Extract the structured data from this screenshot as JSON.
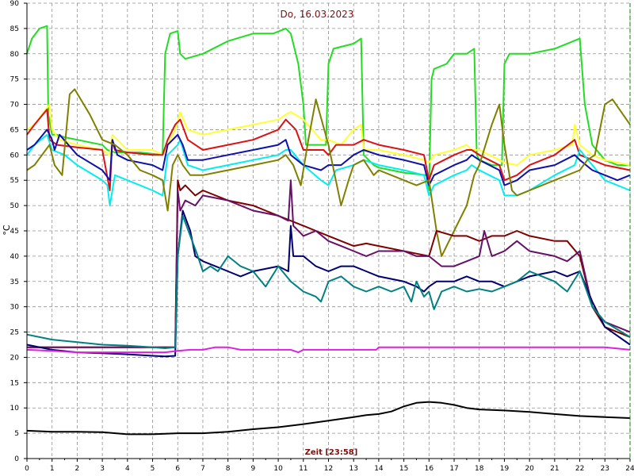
{
  "chart_data": {
    "type": "line",
    "title": "Do, 16.03.2023",
    "xlabel": "Zeit [23:58]",
    "ylabel": "°C",
    "xlim": [
      0,
      24
    ],
    "ylim": [
      0,
      90
    ],
    "x_ticks": [
      "0",
      "1",
      "2",
      "3",
      "4",
      "5",
      "6",
      "7",
      "8",
      "9",
      "10",
      "11",
      "12",
      "13",
      "14",
      "15",
      "16",
      "17",
      "18",
      "19",
      "20",
      "21",
      "22",
      "23",
      "24"
    ],
    "y_ticks": [
      "0",
      "5",
      "10",
      "15",
      "20",
      "25",
      "30",
      "35",
      "40",
      "45",
      "50",
      "55",
      "60",
      "65",
      "70",
      "75",
      "80",
      "85",
      "90"
    ],
    "grid": true,
    "series": [
      {
        "color": "#22dd22",
        "x": [
          0,
          0.2,
          0.5,
          0.8,
          0.85,
          1.0,
          1.2,
          1.5,
          2.0,
          3.0,
          3.2,
          3.5,
          4.5,
          5.4,
          5.5,
          5.7,
          6.0,
          6.1,
          6.3,
          7,
          8,
          9,
          9.8,
          10.3,
          10.5,
          10.8,
          11.0,
          11.1,
          11.5,
          11.9,
          12.0,
          12.2,
          13.0,
          13.3,
          13.4,
          13.8,
          14.0,
          14.5,
          15,
          15.9,
          16.0,
          16.1,
          16.2,
          16.7,
          17,
          17.5,
          17.8,
          17.9,
          18,
          18.5,
          18.9,
          19.0,
          19.2,
          20,
          21,
          22.0,
          22.2,
          22.5,
          23,
          23.5,
          24
        ],
        "y": [
          80,
          83,
          85,
          85.5,
          68,
          64,
          64,
          63.5,
          63,
          62,
          61,
          60.5,
          60.5,
          60,
          80,
          84,
          84.5,
          80,
          79,
          80,
          82.5,
          84,
          84,
          85,
          84,
          78,
          70,
          62,
          62,
          62,
          78,
          81,
          82,
          83,
          60,
          58,
          57.5,
          57,
          56.5,
          56,
          53,
          75,
          77,
          78,
          80,
          80,
          81,
          60,
          59,
          58,
          58,
          78,
          80,
          80,
          81,
          83,
          70,
          62,
          59,
          58,
          58
        ]
      },
      {
        "color": "#ffff33",
        "x": [
          0,
          0.3,
          0.9,
          1.0,
          1.3,
          2,
          3,
          3.3,
          3.4,
          4,
          5,
          5.4,
          5.6,
          5.9,
          6.1,
          6.4,
          7,
          8,
          9,
          10,
          10.3,
          10.5,
          11,
          11.7,
          12,
          12.5,
          13,
          13.3,
          13.4,
          14,
          15,
          15.8,
          16.0,
          16.2,
          17,
          17.5,
          17.7,
          18,
          18.8,
          19.0,
          19.5,
          20,
          21,
          21.7,
          21.8,
          22,
          22.5,
          23,
          24
        ],
        "y": [
          65,
          66,
          70,
          65,
          63,
          62,
          61,
          60,
          64,
          61,
          61,
          60,
          62,
          65,
          68.5,
          65,
          64,
          65,
          66,
          67,
          68,
          68.5,
          67,
          63,
          63,
          62,
          65,
          66,
          61,
          61,
          60,
          59,
          58.5,
          60,
          61,
          62,
          61,
          61,
          59,
          58.5,
          58,
          60,
          61,
          62,
          66,
          62,
          60,
          59,
          58
        ]
      },
      {
        "color": "#dd1111",
        "x": [
          0,
          0.3,
          0.8,
          0.9,
          1.2,
          2,
          3,
          3.3,
          3.4,
          3.5,
          4,
          5,
          5.4,
          5.6,
          5.9,
          6.1,
          6.4,
          7,
          8,
          9,
          10,
          10.3,
          10.7,
          11,
          11.8,
          12,
          12.3,
          13,
          13.4,
          14,
          15,
          15.8,
          16.0,
          16.2,
          17,
          17.5,
          17.7,
          18,
          18.8,
          19.0,
          19.5,
          20,
          21,
          21.8,
          22,
          22.5,
          23,
          24
        ],
        "y": [
          64,
          66,
          69,
          63,
          62,
          61.5,
          61,
          53,
          63,
          61,
          60.5,
          60,
          60,
          63,
          66,
          67,
          63,
          61,
          62,
          63,
          65,
          67,
          65,
          61,
          61,
          60,
          62,
          62,
          63,
          62,
          61,
          60,
          55,
          58,
          60,
          61,
          61,
          60,
          58,
          55,
          56,
          58,
          60,
          63,
          60,
          59,
          58,
          57
        ]
      },
      {
        "color": "#00eeee",
        "x": [
          0,
          0.3,
          0.8,
          1.0,
          1.5,
          2,
          3,
          3.2,
          3.3,
          3.5,
          4,
          5,
          5.4,
          5.6,
          6.0,
          6.1,
          6.4,
          7,
          8,
          9,
          10,
          10.3,
          10.5,
          11,
          11.7,
          12,
          12.3,
          13,
          13.4,
          14,
          15,
          15.8,
          16.0,
          16.2,
          17,
          17.5,
          17.7,
          18,
          18.8,
          19.0,
          19.5,
          20,
          21,
          21.8,
          22,
          22.5,
          23,
          24
        ],
        "y": [
          60,
          62,
          64,
          61,
          60,
          58,
          55,
          54,
          50,
          56,
          55,
          53,
          52,
          60,
          62,
          63,
          58,
          57,
          58,
          59,
          60,
          61,
          61,
          58,
          55,
          54,
          57,
          58,
          59,
          58,
          57,
          56,
          52,
          54,
          56,
          57,
          58,
          57,
          55,
          52,
          52,
          53,
          56,
          58,
          61,
          58,
          55,
          53
        ]
      },
      {
        "color": "#1010aa",
        "x": [
          0,
          0.3,
          0.8,
          1.0,
          1.1,
          1.3,
          2,
          3,
          3.3,
          3.4,
          3.6,
          4,
          5,
          5.4,
          5.6,
          6.0,
          6.2,
          6.4,
          7,
          8,
          9,
          10,
          10.3,
          10.5,
          11,
          11.7,
          12,
          12.5,
          13,
          13.4,
          14,
          15,
          15.8,
          16.0,
          16.2,
          17,
          17.5,
          17.7,
          18,
          18.8,
          19.0,
          19.5,
          20,
          21,
          21.8,
          22,
          22.5,
          23,
          23.5,
          24
        ],
        "y": [
          61,
          62,
          65,
          63,
          61,
          64,
          60,
          57,
          55,
          63,
          60,
          59,
          58,
          57,
          62,
          64,
          62,
          59,
          59,
          60,
          61,
          62,
          63,
          60,
          58,
          57,
          58,
          58,
          60,
          61,
          60,
          59,
          58,
          54,
          56,
          58,
          59,
          60,
          59,
          57,
          54,
          55,
          57,
          58,
          60,
          59,
          57,
          56,
          55,
          56
        ]
      },
      {
        "color": "#808000",
        "x": [
          0,
          0.3,
          0.6,
          0.9,
          1.1,
          1.4,
          1.7,
          1.9,
          2.5,
          3,
          3.5,
          4,
          4.5,
          5.0,
          5.4,
          5.6,
          5.8,
          6.0,
          6.2,
          6.5,
          7,
          8,
          9,
          10,
          10.3,
          10.6,
          10.9,
          11.2,
          11.5,
          12,
          12.5,
          12.8,
          13.0,
          13.4,
          13.8,
          14,
          14.5,
          15,
          15.5,
          16,
          16.3,
          16.5,
          17,
          17.5,
          17.8,
          18,
          18.5,
          18.8,
          19.0,
          19.3,
          19.5,
          20,
          21,
          22.0,
          22.3,
          22.6,
          23.0,
          23.3,
          24
        ],
        "y": [
          57,
          58,
          60,
          62,
          58,
          56,
          72,
          73,
          68,
          63,
          62,
          60,
          57,
          56,
          55,
          49,
          58,
          60,
          58,
          56,
          56,
          57,
          58,
          59,
          60,
          58,
          54,
          63,
          71,
          62,
          50,
          55,
          58,
          59,
          56,
          57,
          56,
          55,
          54,
          55,
          45,
          40,
          45,
          50,
          56,
          58,
          66,
          70,
          62,
          53,
          52,
          53,
          55,
          57,
          59,
          60,
          70,
          71,
          66
        ]
      },
      {
        "color": "#800000",
        "x": [
          0,
          5.9,
          6.0,
          6.1,
          6.3,
          6.7,
          7,
          8,
          9,
          9.5,
          10,
          10.5,
          11,
          11.5,
          12,
          12.5,
          13,
          13.5,
          14,
          15,
          15.5,
          16,
          16.3,
          17,
          17.5,
          18,
          18.5,
          19,
          19.5,
          20,
          21,
          21.5,
          22,
          22.5,
          23,
          24
        ],
        "y": [
          22,
          22,
          55,
          53,
          54,
          52,
          53,
          51,
          50,
          49,
          48,
          47,
          46,
          45,
          44,
          43,
          42,
          42.5,
          42,
          41,
          40.5,
          40,
          45,
          44,
          44,
          43,
          44,
          44,
          45,
          44,
          43,
          43,
          40,
          30,
          26,
          24
        ]
      },
      {
        "color": "#661066",
        "x": [
          0,
          5.9,
          6.0,
          6.1,
          6.3,
          6.7,
          7,
          8,
          9,
          10,
          10.4,
          10.5,
          10.6,
          11,
          11.5,
          12,
          12.5,
          13,
          13.5,
          14,
          15,
          15.5,
          16,
          16.5,
          17,
          17.5,
          18,
          18.2,
          18.5,
          19,
          19.5,
          20,
          21,
          21.5,
          22,
          22.5,
          23,
          24
        ],
        "y": [
          22,
          22,
          53,
          49,
          51,
          50,
          52,
          51,
          49,
          48,
          47,
          55,
          46,
          44,
          45,
          43,
          42,
          41,
          40,
          41,
          41,
          40,
          40,
          38,
          38,
          39,
          40,
          45,
          40,
          41,
          43,
          41,
          40,
          39,
          41,
          30,
          27,
          25
        ]
      },
      {
        "color": "#000070",
        "x": [
          0,
          1,
          2,
          3,
          4,
          5,
          5.5,
          5.9,
          6.0,
          6.2,
          6.5,
          6.7,
          7,
          7.5,
          8,
          8.5,
          9,
          10,
          10.4,
          10.5,
          10.6,
          11,
          11.5,
          12,
          12.5,
          13,
          13.5,
          14,
          15,
          15.5,
          15.8,
          16.0,
          16.3,
          17,
          17.5,
          18,
          18.5,
          19,
          19.5,
          20,
          21,
          21.5,
          22,
          22.5,
          23,
          24
        ],
        "y": [
          22.5,
          21.5,
          21,
          20.8,
          20.6,
          20.3,
          20.2,
          20.3,
          40,
          49,
          45,
          40,
          39,
          38,
          37,
          36,
          37,
          38,
          37,
          46,
          40,
          40,
          38,
          37,
          38,
          38,
          37,
          36,
          35,
          34,
          33,
          34,
          35,
          35,
          36,
          35,
          35,
          34,
          35,
          36,
          37,
          36,
          37,
          31,
          26,
          22.5
        ]
      },
      {
        "color": "#008080",
        "x": [
          0,
          1,
          2,
          3,
          4,
          5,
          5.5,
          5.9,
          6.0,
          6.2,
          6.5,
          6.8,
          7,
          7.3,
          7.6,
          8,
          8.5,
          9,
          9.5,
          10,
          10.5,
          11,
          11.5,
          11.7,
          12,
          12.5,
          13,
          13.5,
          14,
          14.5,
          15,
          15.3,
          15.5,
          15.8,
          16,
          16.2,
          16.5,
          17,
          17.5,
          18,
          18.5,
          19,
          19.5,
          20,
          20.5,
          21,
          21.5,
          22,
          22.5,
          23,
          24
        ],
        "y": [
          24.5,
          23.5,
          23,
          22.5,
          22.3,
          22,
          21.8,
          22,
          40,
          48,
          44,
          40,
          37,
          38,
          37,
          40,
          38,
          37,
          34,
          38,
          35,
          33,
          32,
          31,
          35,
          36,
          34,
          33,
          34,
          33,
          34,
          31,
          35,
          32,
          33,
          29.5,
          33,
          34,
          33,
          33.5,
          33,
          34,
          35,
          37,
          36,
          35,
          33,
          37,
          30,
          27,
          24
        ]
      },
      {
        "color": "#dd22dd",
        "x": [
          0,
          1,
          2,
          3,
          4,
          5,
          5.5,
          6.0,
          6.5,
          7,
          7.5,
          8,
          8.5,
          9,
          10,
          10.5,
          10.8,
          11,
          12,
          13,
          13.9,
          14,
          15,
          16,
          17,
          18,
          19,
          20,
          21,
          22,
          23,
          24
        ],
        "y": [
          21.5,
          21.3,
          21,
          21,
          21,
          21,
          21,
          21.3,
          21.5,
          21.5,
          22,
          22,
          21.5,
          21.5,
          21.5,
          21.5,
          21,
          21.5,
          21.5,
          21.5,
          21.5,
          22,
          22,
          22,
          22,
          22,
          22,
          22,
          22,
          22,
          22,
          21.5
        ]
      },
      {
        "color": "#000000",
        "x": [
          0,
          1,
          2,
          3,
          4,
          5,
          6,
          7,
          8,
          9,
          10,
          11,
          12,
          13,
          13.5,
          14,
          14.5,
          15,
          15.5,
          16,
          16.5,
          17,
          17.5,
          18,
          19,
          20,
          21,
          22,
          23,
          24
        ],
        "y": [
          5.5,
          5.3,
          5.3,
          5.2,
          4.8,
          4.8,
          5,
          5,
          5.3,
          5.8,
          6.2,
          6.8,
          7.5,
          8.2,
          8.6,
          8.8,
          9.3,
          10.3,
          11,
          11.2,
          11,
          10.6,
          10,
          9.7,
          9.5,
          9.2,
          8.8,
          8.4,
          8.2,
          8
        ]
      }
    ]
  }
}
